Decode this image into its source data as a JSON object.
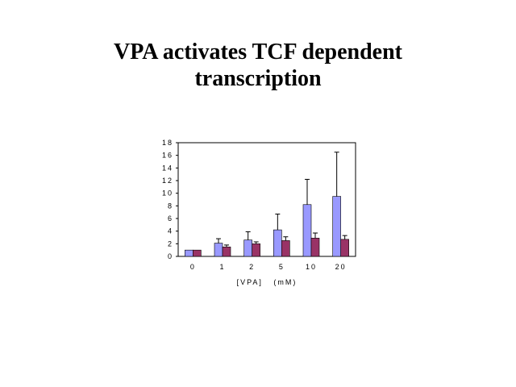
{
  "slide": {
    "title_line1": "VPA activates TCF dependent",
    "title_line2": "transcription"
  },
  "chart_data": {
    "type": "bar",
    "title": "",
    "xlabel": "[VPA]   (mM)",
    "ylabel": "",
    "categories": [
      "0",
      "1",
      "2",
      "5",
      "10",
      "20"
    ],
    "ylim": [
      0,
      18
    ],
    "yticks": [
      0,
      2,
      4,
      6,
      8,
      10,
      12,
      14,
      16,
      18
    ],
    "series": [
      {
        "color": "#9999ff",
        "values": [
          1.0,
          2.1,
          2.6,
          4.2,
          8.2,
          9.5
        ],
        "errors": [
          0,
          0.7,
          1.3,
          2.5,
          4.0,
          7.0
        ]
      },
      {
        "color": "#993366",
        "values": [
          1.0,
          1.5,
          2.0,
          2.5,
          2.9,
          2.7
        ],
        "errors": [
          0,
          0.3,
          0.3,
          0.6,
          0.8,
          0.6
        ]
      }
    ],
    "grid": false,
    "legend": "none"
  }
}
